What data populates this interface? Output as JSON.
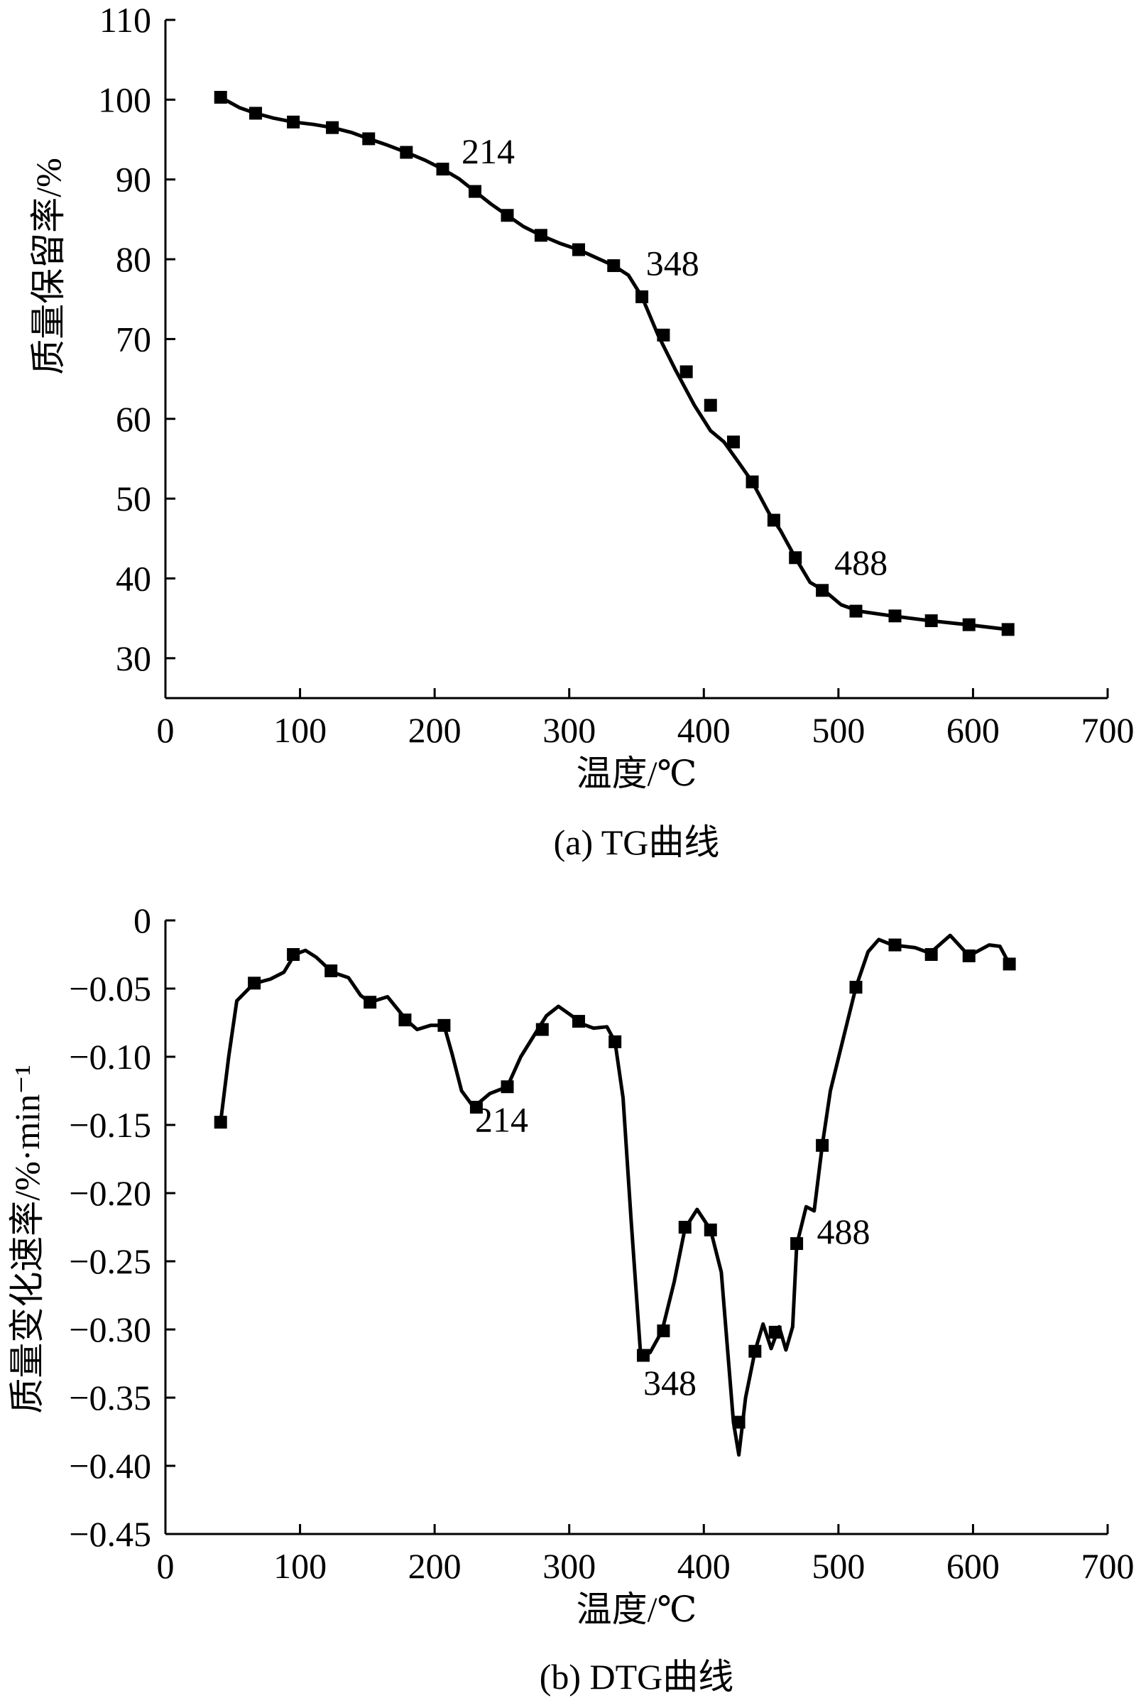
{
  "chart_data": [
    {
      "type": "line",
      "caption": "(a) TG曲线",
      "xlabel": "温度/℃",
      "ylabel": "质量保留率/%",
      "xlim": [
        0,
        700
      ],
      "ylim": [
        25,
        110
      ],
      "xticks": [
        0,
        100,
        200,
        300,
        400,
        500,
        600,
        700
      ],
      "xtick_labels": [
        "0",
        "100",
        "200",
        "300",
        "400",
        "500",
        "600",
        "700"
      ],
      "yticks": [
        30,
        40,
        50,
        60,
        70,
        80,
        90,
        100,
        110
      ],
      "ytick_labels": [
        "30",
        "40",
        "50",
        "60",
        "70",
        "80",
        "90",
        "100",
        "110"
      ],
      "grid": false,
      "line": [
        [
          41,
          100.3
        ],
        [
          55,
          99
        ],
        [
          67,
          98.3
        ],
        [
          80,
          97.7
        ],
        [
          95,
          97.2
        ],
        [
          110,
          96.9
        ],
        [
          124,
          96.5
        ],
        [
          138,
          95.9
        ],
        [
          151,
          95.1
        ],
        [
          165,
          94.3
        ],
        [
          179,
          93.4
        ],
        [
          193,
          92.4
        ],
        [
          206,
          91.3
        ],
        [
          218,
          90.1
        ],
        [
          230,
          88.5
        ],
        [
          242,
          86.9
        ],
        [
          254,
          85.5
        ],
        [
          266,
          84.1
        ],
        [
          279,
          83.0
        ],
        [
          293,
          82.0
        ],
        [
          307,
          81.2
        ],
        [
          320,
          80.2
        ],
        [
          333,
          79.2
        ],
        [
          344,
          78.0
        ],
        [
          354,
          75.3
        ],
        [
          366,
          70.5
        ],
        [
          379,
          66.1
        ],
        [
          393,
          61.7
        ],
        [
          405,
          58.5
        ],
        [
          415,
          57.1
        ],
        [
          426,
          54.5
        ],
        [
          436,
          52.1
        ],
        [
          448,
          48.3
        ],
        [
          457,
          46.0
        ],
        [
          468,
          42.6
        ],
        [
          479,
          39.5
        ],
        [
          490,
          38.4
        ],
        [
          502,
          36.7
        ],
        [
          515,
          35.9
        ],
        [
          540,
          35.3
        ],
        [
          568,
          34.7
        ],
        [
          596,
          34.2
        ],
        [
          626,
          33.6
        ]
      ],
      "markers": [
        [
          41,
          100.3
        ],
        [
          67,
          98.3
        ],
        [
          95,
          97.2
        ],
        [
          124,
          96.5
        ],
        [
          151,
          95.1
        ],
        [
          179,
          93.4
        ],
        [
          206,
          91.3
        ],
        [
          230,
          88.5
        ],
        [
          254,
          85.5
        ],
        [
          279,
          83.0
        ],
        [
          307,
          81.2
        ],
        [
          333,
          79.2
        ],
        [
          354,
          75.3
        ],
        [
          370,
          70.5
        ],
        [
          387,
          65.9
        ],
        [
          405,
          61.7
        ],
        [
          422,
          57.1
        ],
        [
          436,
          52.1
        ],
        [
          452,
          47.3
        ],
        [
          468,
          42.6
        ],
        [
          488,
          38.5
        ],
        [
          513,
          35.9
        ],
        [
          542,
          35.3
        ],
        [
          569,
          34.7
        ],
        [
          597,
          34.2
        ],
        [
          626,
          33.6
        ]
      ],
      "annotations": [
        {
          "text": "214",
          "x": 220,
          "y": 92
        },
        {
          "text": "348",
          "x": 357,
          "y": 78
        },
        {
          "text": "488",
          "x": 497,
          "y": 40.5
        }
      ]
    },
    {
      "type": "line",
      "caption": "(b) DTG曲线",
      "xlabel": "温度/℃",
      "ylabel": "质量变化速率/%·min⁻¹",
      "xlim": [
        0,
        700
      ],
      "ylim": [
        -0.45,
        0
      ],
      "xticks": [
        0,
        100,
        200,
        300,
        400,
        500,
        600,
        700
      ],
      "xtick_labels": [
        "0",
        "100",
        "200",
        "300",
        "400",
        "500",
        "600",
        "700"
      ],
      "yticks": [
        0,
        -0.05,
        -0.1,
        -0.15,
        -0.2,
        -0.25,
        -0.3,
        -0.35,
        -0.4,
        -0.45
      ],
      "ytick_labels": [
        "0",
        "−0.05",
        "−0.10",
        "−0.15",
        "−0.20",
        "−0.25",
        "−0.30",
        "−0.35",
        "−0.40",
        "−0.45"
      ],
      "grid": false,
      "line": [
        [
          41,
          -0.148
        ],
        [
          47,
          -0.1
        ],
        [
          53,
          -0.059
        ],
        [
          62,
          -0.05
        ],
        [
          67,
          -0.046
        ],
        [
          78,
          -0.043
        ],
        [
          88,
          -0.038
        ],
        [
          96,
          -0.025
        ],
        [
          104,
          -0.022
        ],
        [
          112,
          -0.027
        ],
        [
          124,
          -0.038
        ],
        [
          136,
          -0.042
        ],
        [
          145,
          -0.055
        ],
        [
          152,
          -0.06
        ],
        [
          165,
          -0.056
        ],
        [
          179,
          -0.073
        ],
        [
          187,
          -0.08
        ],
        [
          197,
          -0.077
        ],
        [
          207,
          -0.077
        ],
        [
          213,
          -0.098
        ],
        [
          220,
          -0.125
        ],
        [
          229,
          -0.137
        ],
        [
          241,
          -0.127
        ],
        [
          254,
          -0.122
        ],
        [
          264,
          -0.1
        ],
        [
          276,
          -0.081
        ],
        [
          283,
          -0.07
        ],
        [
          292,
          -0.063
        ],
        [
          302,
          -0.07
        ],
        [
          307,
          -0.075
        ],
        [
          318,
          -0.079
        ],
        [
          328,
          -0.078
        ],
        [
          334,
          -0.089
        ],
        [
          340,
          -0.13
        ],
        [
          346,
          -0.22
        ],
        [
          353,
          -0.318
        ],
        [
          360,
          -0.317
        ],
        [
          369,
          -0.301
        ],
        [
          378,
          -0.265
        ],
        [
          386,
          -0.226
        ],
        [
          395,
          -0.212
        ],
        [
          405,
          -0.227
        ],
        [
          413,
          -0.258
        ],
        [
          422,
          -0.368
        ],
        [
          426,
          -0.392
        ],
        [
          431,
          -0.35
        ],
        [
          438,
          -0.316
        ],
        [
          444,
          -0.296
        ],
        [
          450,
          -0.314
        ],
        [
          456,
          -0.298
        ],
        [
          461,
          -0.315
        ],
        [
          466,
          -0.298
        ],
        [
          469,
          -0.238
        ],
        [
          476,
          -0.21
        ],
        [
          482,
          -0.213
        ],
        [
          488,
          -0.165
        ],
        [
          494,
          -0.125
        ],
        [
          504,
          -0.085
        ],
        [
          513,
          -0.049
        ],
        [
          522,
          -0.023
        ],
        [
          530,
          -0.014
        ],
        [
          540,
          -0.018
        ],
        [
          557,
          -0.02
        ],
        [
          568,
          -0.024
        ],
        [
          583,
          -0.011
        ],
        [
          597,
          -0.026
        ],
        [
          612,
          -0.018
        ],
        [
          620,
          -0.019
        ],
        [
          627,
          -0.032
        ]
      ],
      "markers": [
        [
          41,
          -0.148
        ],
        [
          66,
          -0.046
        ],
        [
          95,
          -0.025
        ],
        [
          123,
          -0.037
        ],
        [
          152,
          -0.06
        ],
        [
          178,
          -0.073
        ],
        [
          207,
          -0.077
        ],
        [
          231,
          -0.137
        ],
        [
          254,
          -0.122
        ],
        [
          280,
          -0.08
        ],
        [
          307,
          -0.074
        ],
        [
          334,
          -0.089
        ],
        [
          355,
          -0.319
        ],
        [
          370,
          -0.301
        ],
        [
          386,
          -0.225
        ],
        [
          405,
          -0.227
        ],
        [
          426,
          -0.368
        ],
        [
          438,
          -0.316
        ],
        [
          453,
          -0.302
        ],
        [
          469,
          -0.237
        ],
        [
          488,
          -0.165
        ],
        [
          513,
          -0.049
        ],
        [
          542,
          -0.018
        ],
        [
          569,
          -0.025
        ],
        [
          597,
          -0.026
        ],
        [
          627,
          -0.032
        ]
      ],
      "annotations": [
        {
          "text": "214",
          "x": 230,
          "y": -0.155
        },
        {
          "text": "348",
          "x": 355,
          "y": -0.348
        },
        {
          "text": "488",
          "x": 484,
          "y": -0.237
        }
      ]
    }
  ]
}
